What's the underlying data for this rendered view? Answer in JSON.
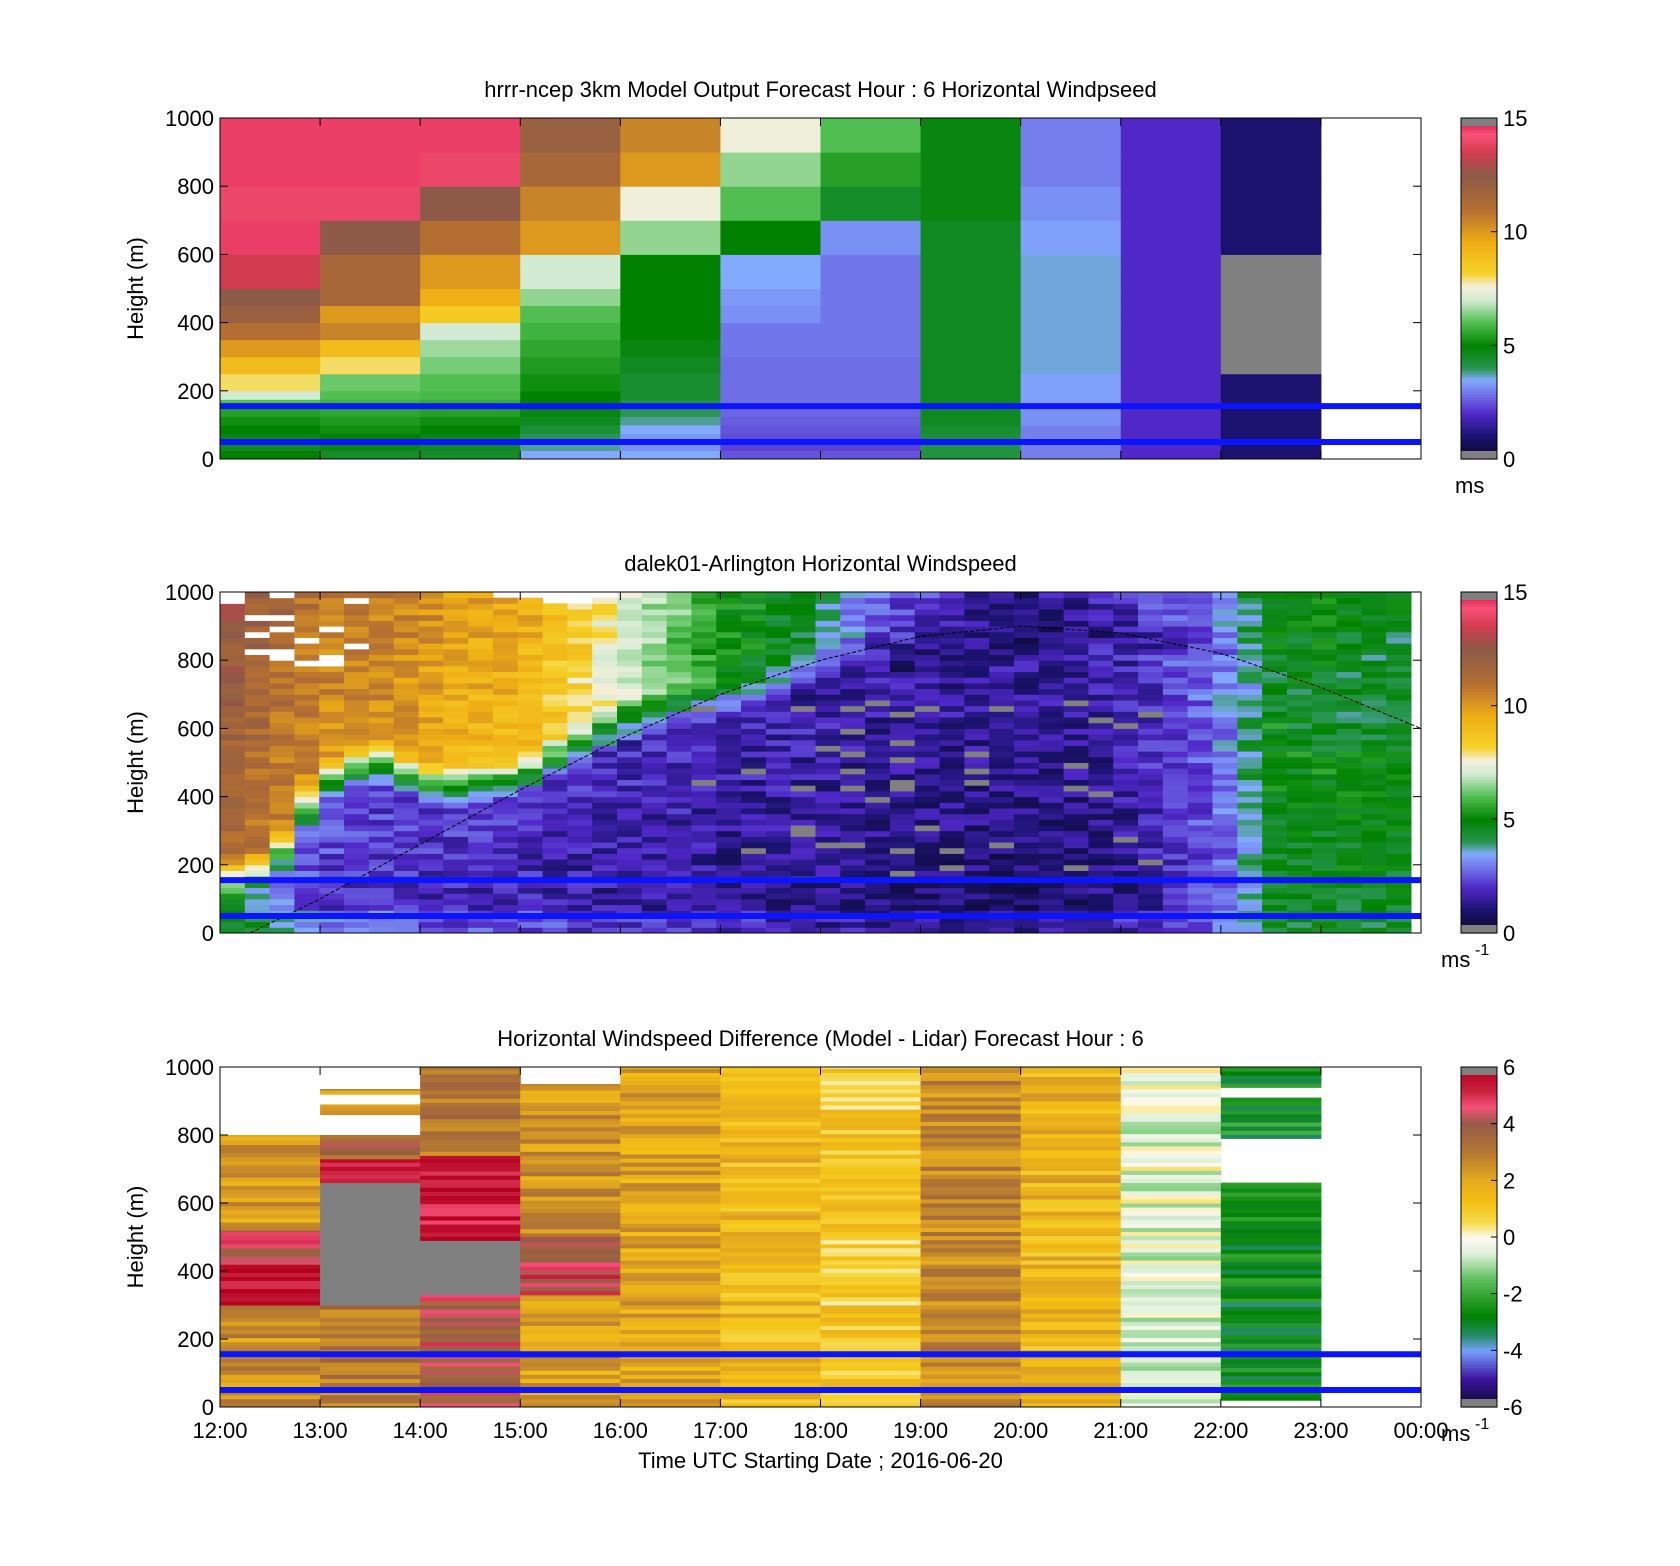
{
  "figure": {
    "xlabel": "Time UTC  Starting Date ; 2016-06-20",
    "xtick_labels": [
      "12:00",
      "13:00",
      "14:00",
      "15:00",
      "16:00",
      "17:00",
      "18:00",
      "19:00",
      "20:00",
      "21:00",
      "22:00",
      "23:00",
      "00:00"
    ],
    "ytick_labels": [
      "0",
      "200",
      "400",
      "600",
      "800",
      "1000"
    ],
    "ylabel": "Height (m)"
  },
  "colors": {
    "reference_line": "#0a14ff",
    "missing": "#808080",
    "boundary_layer_curve": "#000000"
  },
  "chart_data": [
    {
      "type": "heatmap",
      "title": "hrrr-ncep 3km Model Output   Forecast Hour : 6 Horizontal Windpseed",
      "ylabel": "Height (m)",
      "ylim": [
        0,
        1000
      ],
      "xlim_hours": [
        12,
        24
      ],
      "colorbar": {
        "min": 0,
        "max": 15,
        "ticks": [
          "0",
          "5",
          "10",
          "15"
        ],
        "unit": "ms",
        "unit_sup": ""
      },
      "reference_lines_m": [
        50,
        155
      ],
      "hours": [
        12,
        13,
        14,
        15,
        16,
        17,
        18,
        19,
        20,
        21,
        22
      ],
      "heights_m": [
        0,
        25,
        50,
        75,
        100,
        125,
        150,
        175,
        200,
        250,
        300,
        350,
        400,
        450,
        500,
        550,
        600,
        700,
        800,
        900,
        1000
      ],
      "values": [
        [
          5.0,
          4.5,
          4.5,
          3.5,
          3.5,
          2.5,
          2.5,
          4.2,
          3.0,
          2.0,
          1.0
        ],
        [
          4.6,
          4.8,
          4.6,
          3.8,
          3.2,
          2.3,
          2.3,
          4.2,
          3.0,
          2.0,
          1.0
        ],
        [
          4.8,
          5.0,
          4.8,
          4.0,
          3.3,
          2.4,
          2.4,
          4.3,
          3.0,
          2.0,
          1.0
        ],
        [
          5.0,
          5.2,
          5.0,
          4.3,
          3.5,
          2.5,
          2.5,
          4.4,
          3.0,
          2.0,
          1.0
        ],
        [
          5.2,
          5.4,
          5.2,
          4.6,
          3.8,
          2.6,
          2.6,
          4.6,
          3.2,
          2.0,
          1.0
        ],
        [
          5.5,
          5.6,
          5.5,
          4.8,
          4.0,
          2.7,
          2.7,
          4.6,
          3.2,
          2.0,
          1.0
        ],
        [
          6.0,
          5.8,
          5.7,
          5.0,
          4.2,
          2.8,
          2.8,
          4.6,
          3.4,
          2.0,
          1.0
        ],
        [
          7.0,
          6.0,
          5.9,
          5.0,
          4.4,
          2.8,
          2.8,
          4.6,
          3.4,
          2.0,
          1.0
        ],
        [
          8.0,
          6.2,
          6.0,
          5.2,
          4.4,
          2.8,
          2.8,
          4.6,
          3.4,
          2.0,
          1.0
        ],
        [
          9.0,
          8.0,
          6.3,
          5.4,
          4.6,
          2.8,
          2.8,
          4.6,
          3.6,
          2.0,
          -1
        ],
        [
          10.0,
          9.0,
          6.6,
          5.6,
          4.8,
          2.9,
          2.9,
          4.6,
          3.6,
          2.0,
          -1
        ],
        [
          11.0,
          10.5,
          7.0,
          5.8,
          5.0,
          2.9,
          2.9,
          4.6,
          3.6,
          2.0,
          -1
        ],
        [
          12.0,
          10.0,
          8.5,
          6.0,
          5.0,
          3.2,
          2.9,
          4.6,
          3.6,
          2.0,
          -1
        ],
        [
          12.5,
          11.5,
          9.5,
          6.5,
          5.0,
          3.3,
          2.9,
          4.6,
          3.6,
          2.0,
          -1
        ],
        [
          13.5,
          11.5,
          10.0,
          7.0,
          5.0,
          3.5,
          2.9,
          4.6,
          3.6,
          2.0,
          -1
        ],
        [
          13.5,
          11.5,
          10.0,
          7.0,
          5.0,
          3.5,
          2.9,
          4.6,
          3.6,
          2.0,
          -1
        ],
        [
          14.5,
          12.5,
          11.0,
          10.0,
          6.5,
          5.0,
          3.2,
          4.6,
          3.4,
          2.0,
          1.0
        ],
        [
          14.0,
          14.0,
          12.5,
          10.5,
          7.5,
          6.0,
          4.5,
          4.8,
          3.2,
          2.0,
          1.0
        ],
        [
          14.5,
          14.5,
          14.0,
          11.5,
          10.0,
          6.5,
          5.5,
          4.8,
          3.0,
          2.0,
          1.0
        ],
        [
          14.5,
          14.5,
          14.5,
          12.0,
          10.5,
          7.5,
          6.0,
          4.8,
          3.0,
          2.0,
          1.0
        ]
      ]
    },
    {
      "type": "heatmap",
      "title": "dalek01-Arlington  Horizontal Windspeed",
      "ylabel": "Height (m)",
      "ylim": [
        0,
        1000
      ],
      "xlim_hours": [
        12,
        24
      ],
      "colorbar": {
        "min": 0,
        "max": 15,
        "ticks": [
          "0",
          "5",
          "10",
          "15"
        ],
        "unit": "ms",
        "unit_sup": "-1"
      },
      "reference_lines_m": [
        50,
        155
      ],
      "time_range_hours": [
        12,
        23.9
      ],
      "profile_keyframes": {
        "hours": [
          12.0,
          12.5,
          13.0,
          13.5,
          14.0,
          14.5,
          15.0,
          15.5,
          16.0,
          16.5,
          17.0,
          17.5,
          18.0,
          18.5,
          19.0,
          19.5,
          20.0,
          20.5,
          21.0,
          21.5,
          22.0,
          22.5,
          23.0,
          23.5,
          23.9
        ],
        "upper_speed": [
          11.5,
          10.5,
          10.0,
          10.0,
          9.5,
          9.0,
          9.0,
          8.0,
          7.0,
          6.0,
          5.0,
          4.5,
          4.0,
          2.5,
          2.0,
          1.5,
          1.2,
          1.5,
          2.0,
          2.5,
          3.0,
          4.5,
          4.5,
          4.0,
          4.0
        ],
        "upper_top_m": [
          1000,
          1000,
          1000,
          1000,
          1000,
          1000,
          980,
          960,
          1000,
          1000,
          1000,
          1000,
          1000,
          1000,
          1000,
          1000,
          1000,
          1000,
          1000,
          1000,
          1000,
          1000,
          1000,
          1000,
          1000
        ],
        "low_jet_top_m": [
          150,
          180,
          420,
          500,
          430,
          420,
          440,
          520,
          600,
          640,
          660,
          700,
          760,
          800,
          830,
          860,
          880,
          900,
          920,
          880,
          850,
          700,
          600,
          600,
          600
        ],
        "low_jet_speed": [
          4.5,
          3.0,
          2.0,
          1.8,
          1.8,
          1.6,
          1.6,
          1.5,
          1.4,
          1.4,
          1.2,
          1.2,
          1.2,
          1.0,
          1.0,
          1.0,
          0.9,
          1.0,
          1.2,
          1.8,
          2.5,
          4.5,
          4.5,
          4.5,
          4.5
        ],
        "surface_speed": [
          5.0,
          4.0,
          3.0,
          2.8,
          2.6,
          2.4,
          2.4,
          2.2,
          2.0,
          2.0,
          2.0,
          1.8,
          1.6,
          1.6,
          1.4,
          1.4,
          1.4,
          1.6,
          1.8,
          2.2,
          3.0,
          4.5,
          4.5,
          4.5,
          4.5
        ]
      },
      "boundary_layer_curve": {
        "hours": [
          12.3,
          13.0,
          14.0,
          15.0,
          16.0,
          17.0,
          18.0,
          19.0,
          20.0,
          21.0,
          22.0,
          23.0,
          24.0
        ],
        "height_m": [
          0,
          100,
          260,
          420,
          570,
          700,
          800,
          870,
          900,
          880,
          820,
          720,
          600
        ]
      }
    },
    {
      "type": "heatmap",
      "title": "Horizontal Windspeed Difference (Model - Lidar) Forecast Hour : 6",
      "ylabel": "Height (m)",
      "xlabel": "Time UTC  Starting Date ; 2016-06-20",
      "ylim": [
        0,
        1000
      ],
      "xlim_hours": [
        12,
        24
      ],
      "colorbar": {
        "min": -6,
        "max": 6,
        "ticks": [
          "-6",
          "-4",
          "-2",
          "0",
          "2",
          "4",
          "6"
        ],
        "unit": "ms",
        "unit_sup": "-1"
      },
      "reference_lines_m": [
        50,
        155
      ],
      "columns": [
        {
          "hour": 12,
          "segments": [
            {
              "from": 0,
              "to": 300,
              "value": 2.5
            },
            {
              "from": 300,
              "to": 420,
              "value": 5.5
            },
            {
              "from": 420,
              "to": 520,
              "value": 4.5
            },
            {
              "from": 520,
              "to": 800,
              "value": 2.2
            }
          ]
        },
        {
          "hour": 13,
          "segments": [
            {
              "from": 0,
              "to": 300,
              "value": 3.0
            },
            {
              "from": 300,
              "to": 660,
              "value": null
            },
            {
              "from": 660,
              "to": 730,
              "value": 5.0
            },
            {
              "from": 730,
              "to": 800,
              "value": 3.5
            },
            {
              "from": 860,
              "to": 890,
              "value": 2.5
            },
            {
              "from": 920,
              "to": 935,
              "value": 2.5
            }
          ]
        },
        {
          "hour": 14,
          "segments": [
            {
              "from": 0,
              "to": 330,
              "value": 4.2
            },
            {
              "from": 330,
              "to": 490,
              "value": null
            },
            {
              "from": 490,
              "to": 740,
              "value": 5.5
            },
            {
              "from": 740,
              "to": 1000,
              "value": 3.2
            }
          ]
        },
        {
          "hour": 15,
          "segments": [
            {
              "from": 0,
              "to": 330,
              "value": 2.2
            },
            {
              "from": 330,
              "to": 500,
              "value": 4.5
            },
            {
              "from": 500,
              "to": 950,
              "value": 2.4
            }
          ]
        },
        {
          "hour": 16,
          "segments": [
            {
              "from": 0,
              "to": 1000,
              "value": 2.0
            }
          ]
        },
        {
          "hour": 17,
          "segments": [
            {
              "from": 0,
              "to": 1000,
              "value": 1.5
            }
          ]
        },
        {
          "hour": 18,
          "segments": [
            {
              "from": 0,
              "to": 1000,
              "value": 1.0
            }
          ]
        },
        {
          "hour": 19,
          "segments": [
            {
              "from": 0,
              "to": 1000,
              "value": 2.7
            }
          ]
        },
        {
          "hour": 20,
          "segments": [
            {
              "from": 0,
              "to": 1000,
              "value": 1.6
            }
          ]
        },
        {
          "hour": 21,
          "segments": [
            {
              "from": 0,
              "to": 1000,
              "value": -0.4
            }
          ]
        },
        {
          "hour": 22,
          "segments": [
            {
              "from": 20,
              "to": 660,
              "value": -2.8
            },
            {
              "from": 790,
              "to": 910,
              "value": -2.6
            },
            {
              "from": 940,
              "to": 1000,
              "value": -2.6
            }
          ]
        }
      ]
    }
  ]
}
